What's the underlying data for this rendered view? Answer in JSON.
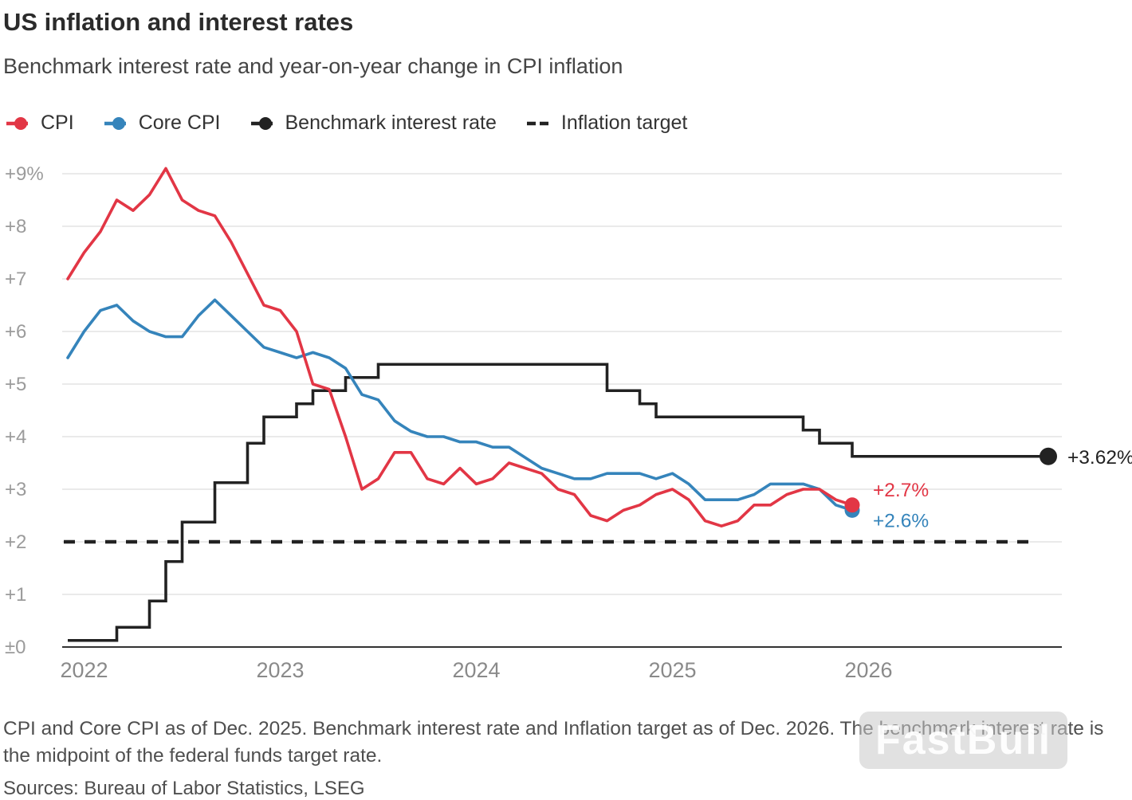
{
  "header": {
    "title": "US inflation and interest rates",
    "subtitle": "Benchmark interest rate and year-on-year change in CPI inflation"
  },
  "legend": [
    {
      "label": "CPI",
      "color": "#e23645",
      "type": "line-dot"
    },
    {
      "label": "Core CPI",
      "color": "#3584bb",
      "type": "line-dot"
    },
    {
      "label": "Benchmark interest rate",
      "color": "#222222",
      "type": "line-dot"
    },
    {
      "label": "Inflation target",
      "color": "#222222",
      "type": "dashed"
    }
  ],
  "chart_data": {
    "type": "line",
    "title": "US inflation and interest rates",
    "subtitle": "Benchmark interest rate and year-on-year change in CPI inflation",
    "x_unit": "months since Dec 2021",
    "xlim": [
      0,
      60.8
    ],
    "ylim": [
      0,
      9.3
    ],
    "grid": true,
    "x_ticks": [
      {
        "month": 1,
        "label": "2022"
      },
      {
        "month": 13,
        "label": "2023"
      },
      {
        "month": 25,
        "label": "2024"
      },
      {
        "month": 37,
        "label": "2025"
      },
      {
        "month": 49,
        "label": "2026"
      }
    ],
    "y_ticks": [
      {
        "v": 0,
        "label": "±0"
      },
      {
        "v": 1,
        "label": "+1"
      },
      {
        "v": 2,
        "label": "+2"
      },
      {
        "v": 3,
        "label": "+3"
      },
      {
        "v": 4,
        "label": "+4"
      },
      {
        "v": 5,
        "label": "+5"
      },
      {
        "v": 6,
        "label": "+6"
      },
      {
        "v": 7,
        "label": "+7"
      },
      {
        "v": 8,
        "label": "+8"
      },
      {
        "v": 9,
        "label": "+9%"
      }
    ],
    "series": [
      {
        "name": "CPI",
        "color": "#e23645",
        "start_month": 0,
        "end_dot": true,
        "values": [
          7.0,
          7.5,
          7.9,
          8.5,
          8.3,
          8.6,
          9.1,
          8.5,
          8.3,
          8.2,
          7.7,
          7.1,
          6.5,
          6.4,
          6.0,
          5.0,
          4.9,
          4.0,
          3.0,
          3.2,
          3.7,
          3.7,
          3.2,
          3.1,
          3.4,
          3.1,
          3.2,
          3.5,
          3.4,
          3.3,
          3.0,
          2.9,
          2.5,
          2.4,
          2.6,
          2.7,
          2.9,
          3.0,
          2.8,
          2.4,
          2.3,
          2.4,
          2.7,
          2.7,
          2.9,
          3.0,
          3.0,
          2.8,
          2.7
        ]
      },
      {
        "name": "Core CPI",
        "color": "#3584bb",
        "start_month": 0,
        "end_dot": true,
        "values": [
          5.5,
          6.0,
          6.4,
          6.5,
          6.2,
          6.0,
          5.9,
          5.9,
          6.3,
          6.6,
          6.3,
          6.0,
          5.7,
          5.6,
          5.5,
          5.6,
          5.5,
          5.3,
          4.8,
          4.7,
          4.3,
          4.1,
          4.0,
          4.0,
          3.9,
          3.9,
          3.8,
          3.8,
          3.6,
          3.4,
          3.3,
          3.2,
          3.2,
          3.3,
          3.3,
          3.3,
          3.2,
          3.3,
          3.1,
          2.8,
          2.8,
          2.8,
          2.9,
          3.1,
          3.1,
          3.1,
          3.0,
          2.7,
          2.6
        ]
      }
    ],
    "benchmark": {
      "name": "Benchmark interest rate",
      "color": "#222222",
      "steps": [
        [
          0,
          0.125
        ],
        [
          3,
          0.375
        ],
        [
          5,
          0.875
        ],
        [
          6,
          1.625
        ],
        [
          7,
          2.375
        ],
        [
          9,
          3.125
        ],
        [
          11,
          3.875
        ],
        [
          12,
          4.375
        ],
        [
          14,
          4.625
        ],
        [
          15,
          4.875
        ],
        [
          17,
          5.125
        ],
        [
          19,
          5.375
        ],
        [
          33,
          4.875
        ],
        [
          35,
          4.625
        ],
        [
          36,
          4.375
        ],
        [
          45,
          4.125
        ],
        [
          46,
          3.875
        ],
        [
          48,
          3.625
        ]
      ],
      "end_month": 60,
      "end_value": 3.625,
      "end_dot": true
    },
    "target": {
      "name": "Inflation target",
      "value": 2,
      "dash_end_month": 59.3
    },
    "annotations": [
      {
        "text": "+3.62%",
        "color": "#222222",
        "month": 60,
        "value": 3.62,
        "placement": "right"
      },
      {
        "text": "+2.7%",
        "color": "#e23645",
        "month": 48,
        "value": 2.7,
        "placement": "above-right"
      },
      {
        "text": "+2.6%",
        "color": "#3584bb",
        "month": 48,
        "value": 2.6,
        "placement": "below-right"
      }
    ]
  },
  "footnote": "CPI and Core CPI as of Dec. 2025. Benchmark interest rate and Inflation target as of Dec. 2026. The benchmark interest rate is the midpoint of the federal funds target rate.",
  "source": "Sources: Bureau of Labor Statistics, LSEG",
  "watermark": "FastBull"
}
